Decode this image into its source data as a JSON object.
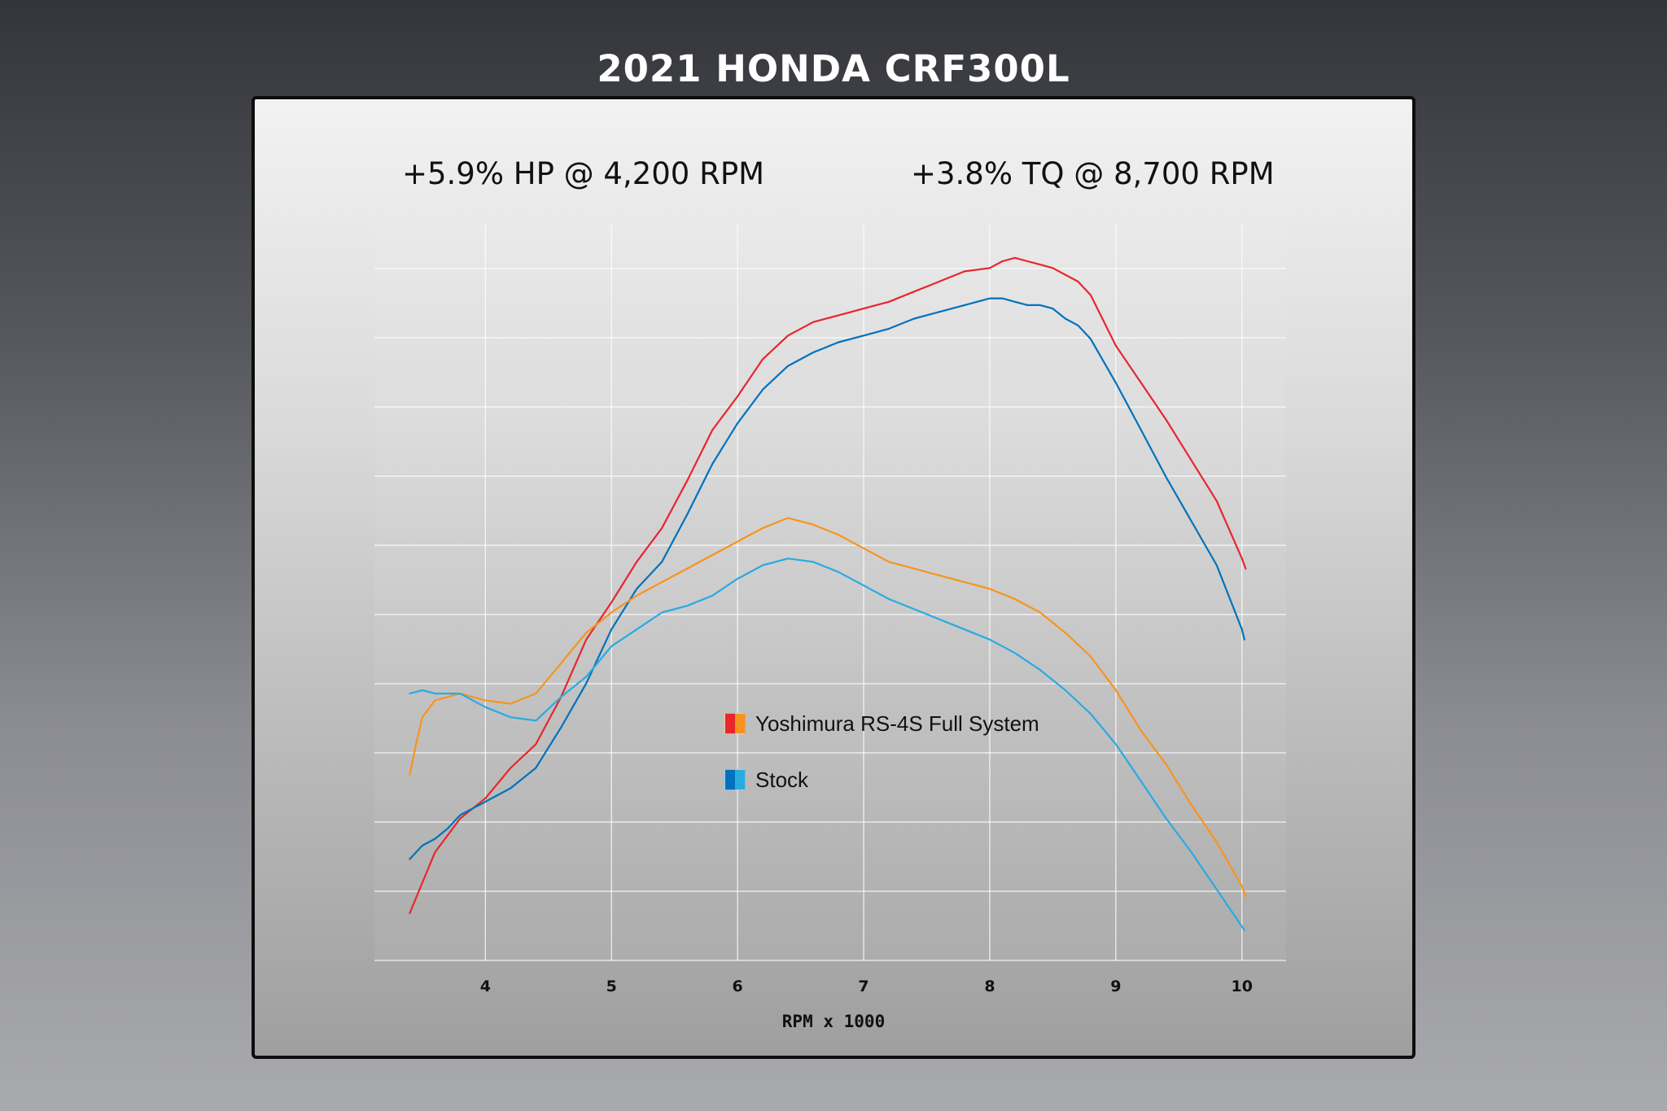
{
  "page": {
    "title": "2021 HONDA CRF300L",
    "hp_note": "+5.9% HP @ 4,200 RPM",
    "tq_note": "+3.8% TQ @ 8,700 RPM"
  },
  "chart_data": {
    "type": "line",
    "title": "2021 HONDA CRF300L",
    "xlabel": "RPM x 1000",
    "ylabel": "",
    "xlim": [
      3.12,
      10.35
    ],
    "ylim": [
      0,
      100
    ],
    "x_ticks": [
      "4",
      "5",
      "6",
      "7",
      "8",
      "9",
      "10"
    ],
    "grid": true,
    "y_axis_labels_shown": false,
    "legend": [
      {
        "label": "Yoshimura RS-4S Full System",
        "colors": [
          "#e8262d",
          "#f7941d"
        ]
      },
      {
        "label": "Stock",
        "colors": [
          "#0072bc",
          "#29abe2"
        ]
      }
    ],
    "series": [
      {
        "name": "Yoshimura RS-4S Full System",
        "measure": "HP",
        "color": "#e8262d",
        "x": [
          3.4,
          3.5,
          3.6,
          3.7,
          3.8,
          4.0,
          4.2,
          4.4,
          4.6,
          4.8,
          5.0,
          5.2,
          5.4,
          5.6,
          5.8,
          6.0,
          6.2,
          6.4,
          6.6,
          6.8,
          7.0,
          7.2,
          7.4,
          7.6,
          7.8,
          8.0,
          8.1,
          8.2,
          8.3,
          8.4,
          8.5,
          8.6,
          8.7,
          8.8,
          9.0,
          9.2,
          9.4,
          9.6,
          9.8,
          10.0,
          10.03
        ],
        "y": [
          7.0,
          11.5,
          16.0,
          18.5,
          21.0,
          24.0,
          28.5,
          32.0,
          39.0,
          47.5,
          53.0,
          59.0,
          64.0,
          71.0,
          78.5,
          83.5,
          89.0,
          92.5,
          94.5,
          95.5,
          96.5,
          97.5,
          99.0,
          100.5,
          102.0,
          102.5,
          103.5,
          104.0,
          103.5,
          103.0,
          102.5,
          101.5,
          100.5,
          98.5,
          91.0,
          85.5,
          80.0,
          74.0,
          68.0,
          59.5,
          58.0
        ]
      },
      {
        "name": "Stock",
        "measure": "HP",
        "color": "#0072bc",
        "x": [
          3.4,
          3.5,
          3.6,
          3.7,
          3.8,
          4.0,
          4.2,
          4.4,
          4.6,
          4.8,
          5.0,
          5.2,
          5.4,
          5.6,
          5.8,
          6.0,
          6.2,
          6.4,
          6.6,
          6.8,
          7.0,
          7.2,
          7.4,
          7.6,
          7.8,
          8.0,
          8.1,
          8.2,
          8.3,
          8.4,
          8.5,
          8.6,
          8.7,
          8.8,
          9.0,
          9.2,
          9.4,
          9.6,
          9.8,
          10.0,
          10.02
        ],
        "y": [
          15.0,
          17.0,
          18.0,
          19.5,
          21.5,
          23.5,
          25.5,
          28.5,
          34.5,
          41.0,
          49.0,
          55.0,
          59.0,
          66.0,
          73.5,
          79.5,
          84.5,
          88.0,
          90.0,
          91.5,
          92.5,
          93.5,
          95.0,
          96.0,
          97.0,
          98.0,
          98.0,
          97.5,
          97.0,
          97.0,
          96.5,
          95.0,
          94.0,
          92.0,
          85.5,
          78.5,
          71.5,
          65.0,
          58.5,
          49.0,
          47.5
        ]
      },
      {
        "name": "Yoshimura RS-4S Full System",
        "measure": "TQ",
        "color": "#f7941d",
        "x": [
          3.4,
          3.45,
          3.5,
          3.6,
          3.8,
          4.0,
          4.2,
          4.4,
          4.6,
          4.8,
          5.0,
          5.2,
          5.4,
          5.6,
          5.8,
          6.0,
          6.2,
          6.4,
          6.6,
          6.8,
          7.0,
          7.2,
          7.4,
          7.6,
          7.8,
          8.0,
          8.2,
          8.4,
          8.6,
          8.8,
          9.0,
          9.2,
          9.4,
          9.6,
          9.8,
          10.0,
          10.03
        ],
        "y": [
          27.5,
          32.0,
          36.0,
          38.5,
          39.5,
          38.5,
          38.0,
          39.5,
          44.0,
          48.5,
          51.5,
          54.0,
          56.0,
          58.0,
          60.0,
          62.0,
          64.0,
          65.5,
          64.5,
          63.0,
          61.0,
          59.0,
          58.0,
          57.0,
          56.0,
          55.0,
          53.5,
          51.5,
          48.5,
          45.0,
          40.0,
          34.0,
          29.0,
          23.0,
          17.5,
          11.0,
          9.5
        ]
      },
      {
        "name": "Stock",
        "measure": "TQ",
        "color": "#29abe2",
        "x": [
          3.4,
          3.5,
          3.6,
          3.8,
          4.0,
          4.2,
          4.4,
          4.6,
          4.8,
          5.0,
          5.2,
          5.4,
          5.6,
          5.8,
          6.0,
          6.2,
          6.4,
          6.6,
          6.8,
          7.0,
          7.2,
          7.4,
          7.6,
          7.8,
          8.0,
          8.2,
          8.4,
          8.6,
          8.8,
          9.0,
          9.2,
          9.4,
          9.6,
          9.8,
          10.0,
          10.02
        ],
        "y": [
          39.5,
          40.0,
          39.5,
          39.5,
          37.5,
          36.0,
          35.5,
          39.0,
          42.0,
          46.5,
          49.0,
          51.5,
          52.5,
          54.0,
          56.5,
          58.5,
          59.5,
          59.0,
          57.5,
          55.5,
          53.5,
          52.0,
          50.5,
          49.0,
          47.5,
          45.5,
          43.0,
          40.0,
          36.5,
          32.0,
          26.5,
          21.0,
          16.0,
          10.5,
          5.0,
          4.5
        ]
      }
    ]
  }
}
